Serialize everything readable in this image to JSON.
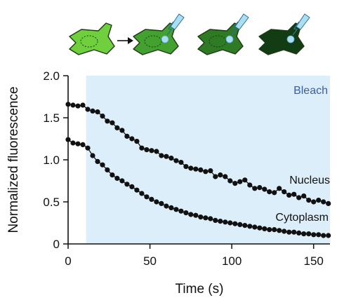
{
  "chart_data": {
    "type": "scatter",
    "xlabel": "Time (s)",
    "ylabel": "Normalized fluorescence",
    "xlim": [
      0,
      160
    ],
    "ylim": [
      0,
      2.0
    ],
    "x_ticks": [
      0,
      50,
      100,
      150
    ],
    "y_ticks": [
      "0",
      "0.5",
      "1.0",
      "1.5",
      "2.0"
    ],
    "grid": false,
    "bleach_region": {
      "label": "Bleach",
      "x_start": 11,
      "x_end": 160,
      "color": "#dceef9",
      "label_color": "#3b5ea8"
    },
    "series": [
      {
        "name": "Nucleus",
        "color": "#111111",
        "points": [
          [
            0,
            1.66
          ],
          [
            3,
            1.65
          ],
          [
            6,
            1.64
          ],
          [
            9,
            1.65
          ],
          [
            12,
            1.6
          ],
          [
            15,
            1.58
          ],
          [
            18,
            1.57
          ],
          [
            21,
            1.52
          ],
          [
            24,
            1.46
          ],
          [
            27,
            1.44
          ],
          [
            30,
            1.38
          ],
          [
            33,
            1.35
          ],
          [
            36,
            1.28
          ],
          [
            39,
            1.25
          ],
          [
            42,
            1.22
          ],
          [
            45,
            1.14
          ],
          [
            48,
            1.12
          ],
          [
            51,
            1.11
          ],
          [
            54,
            1.1
          ],
          [
            57,
            1.05
          ],
          [
            60,
            1.04
          ],
          [
            63,
            1.02
          ],
          [
            66,
            0.99
          ],
          [
            69,
            0.97
          ],
          [
            72,
            0.92
          ],
          [
            75,
            0.9
          ],
          [
            78,
            0.89
          ],
          [
            81,
            0.88
          ],
          [
            84,
            0.86
          ],
          [
            87,
            0.87
          ],
          [
            90,
            0.8
          ],
          [
            93,
            0.82
          ],
          [
            96,
            0.8
          ],
          [
            99,
            0.75
          ],
          [
            102,
            0.72
          ],
          [
            105,
            0.74
          ],
          [
            108,
            0.76
          ],
          [
            111,
            0.7
          ],
          [
            114,
            0.66
          ],
          [
            117,
            0.67
          ],
          [
            120,
            0.65
          ],
          [
            123,
            0.62
          ],
          [
            126,
            0.61
          ],
          [
            129,
            0.66
          ],
          [
            132,
            0.62
          ],
          [
            135,
            0.58
          ],
          [
            138,
            0.59
          ],
          [
            141,
            0.55
          ],
          [
            144,
            0.57
          ],
          [
            147,
            0.52
          ],
          [
            150,
            0.5
          ],
          [
            153,
            0.52
          ],
          [
            156,
            0.5
          ],
          [
            159,
            0.48
          ]
        ]
      },
      {
        "name": "Cytoplasm",
        "color": "#111111",
        "points": [
          [
            0,
            1.24
          ],
          [
            3,
            1.2
          ],
          [
            6,
            1.19
          ],
          [
            9,
            1.18
          ],
          [
            12,
            1.14
          ],
          [
            15,
            1.05
          ],
          [
            18,
            0.98
          ],
          [
            21,
            0.94
          ],
          [
            24,
            0.88
          ],
          [
            27,
            0.82
          ],
          [
            30,
            0.78
          ],
          [
            33,
            0.75
          ],
          [
            36,
            0.71
          ],
          [
            39,
            0.68
          ],
          [
            42,
            0.64
          ],
          [
            45,
            0.6
          ],
          [
            48,
            0.56
          ],
          [
            51,
            0.53
          ],
          [
            54,
            0.5
          ],
          [
            57,
            0.48
          ],
          [
            60,
            0.45
          ],
          [
            63,
            0.43
          ],
          [
            66,
            0.41
          ],
          [
            69,
            0.39
          ],
          [
            72,
            0.37
          ],
          [
            75,
            0.35
          ],
          [
            78,
            0.34
          ],
          [
            81,
            0.32
          ],
          [
            84,
            0.31
          ],
          [
            87,
            0.3
          ],
          [
            90,
            0.28
          ],
          [
            93,
            0.27
          ],
          [
            96,
            0.26
          ],
          [
            99,
            0.25
          ],
          [
            102,
            0.24
          ],
          [
            105,
            0.23
          ],
          [
            108,
            0.22
          ],
          [
            111,
            0.21
          ],
          [
            114,
            0.2
          ],
          [
            117,
            0.19
          ],
          [
            120,
            0.18
          ],
          [
            123,
            0.17
          ],
          [
            126,
            0.17
          ],
          [
            129,
            0.16
          ],
          [
            132,
            0.15
          ],
          [
            135,
            0.14
          ],
          [
            138,
            0.14
          ],
          [
            141,
            0.13
          ],
          [
            144,
            0.12
          ],
          [
            147,
            0.12
          ],
          [
            150,
            0.11
          ],
          [
            153,
            0.11
          ],
          [
            156,
            0.1
          ],
          [
            159,
            0.1
          ]
        ]
      }
    ]
  },
  "illustration": {
    "cell_colors": [
      "#6fcf3c",
      "#43a12f",
      "#2e7a25",
      "#123d14"
    ],
    "laser_color": "#a9def5",
    "icons": [
      "cell-icon",
      "arrow-icon",
      "laser-icon"
    ]
  }
}
